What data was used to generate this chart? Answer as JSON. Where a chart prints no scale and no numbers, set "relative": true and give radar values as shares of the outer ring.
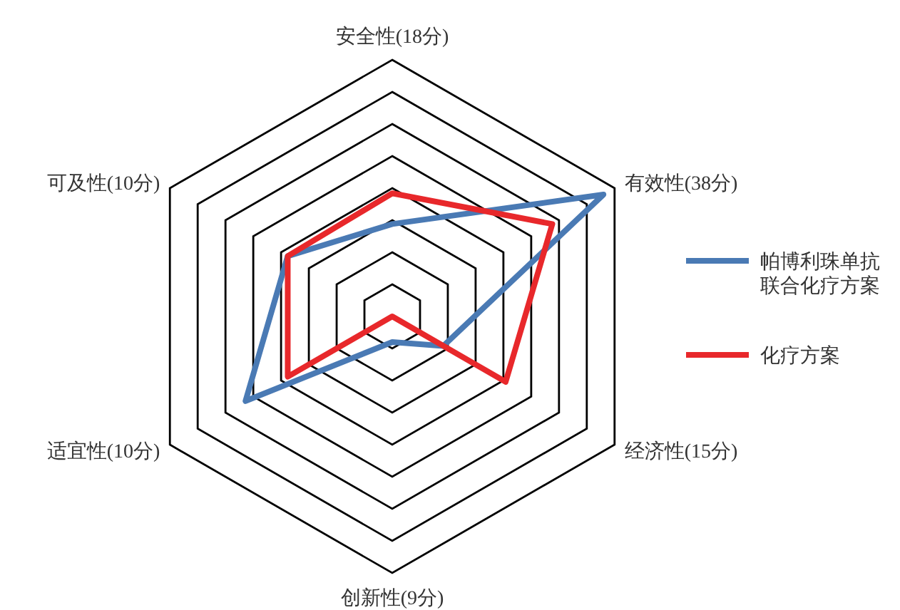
{
  "chart_data": {
    "type": "radar",
    "relative": true,
    "grid": true,
    "legend": "right",
    "categories": [
      "安全性(18分)",
      "有效性(38分)",
      "经济性(15分)",
      "创新性(9分)",
      "适宜性(10分)",
      "可及性(10分)"
    ],
    "series": [
      {
        "name": "帕博利珠单抗联合化疗方案",
        "color": "#4a7ab4",
        "values": [
          0.36,
          0.95,
          0.23,
          0.1,
          0.66,
          0.47
        ]
      },
      {
        "name": "化疗方案",
        "color": "#e8282b",
        "values": [
          0.48,
          0.72,
          0.51,
          0,
          0.47,
          0.47
        ]
      }
    ]
  }
}
